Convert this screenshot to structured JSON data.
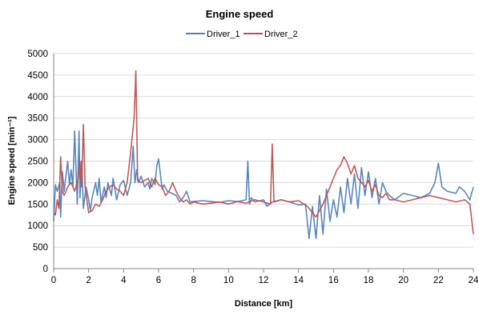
{
  "chart_data": {
    "type": "line",
    "title": "Engine speed",
    "xlabel": "Distance [km]",
    "ylabel": "Engine speed [min⁻¹]",
    "xlim": [
      0,
      24
    ],
    "ylim": [
      0,
      5000
    ],
    "x_ticks": [
      0,
      2,
      4,
      6,
      8,
      10,
      12,
      14,
      16,
      18,
      20,
      22,
      24
    ],
    "y_ticks": [
      0,
      500,
      1000,
      1500,
      2000,
      2500,
      3000,
      3500,
      4000,
      4500,
      5000
    ],
    "grid": true,
    "legend_position": "top",
    "series": [
      {
        "name": "Driver_1",
        "color": "#4F81BD",
        "x": [
          0,
          0.1,
          0.2,
          0.35,
          0.4,
          0.5,
          0.6,
          0.8,
          0.9,
          1.0,
          1.1,
          1.2,
          1.35,
          1.45,
          1.5,
          1.6,
          1.7,
          1.85,
          2.0,
          2.1,
          2.2,
          2.4,
          2.5,
          2.6,
          2.7,
          2.9,
          3.0,
          3.1,
          3.3,
          3.4,
          3.6,
          3.8,
          4.0,
          4.2,
          4.4,
          4.55,
          4.65,
          4.75,
          4.85,
          5.0,
          5.2,
          5.4,
          5.5,
          5.6,
          5.8,
          5.9,
          6.0,
          6.2,
          6.3,
          6.5,
          7.0,
          7.2,
          7.4,
          7.6,
          7.8,
          8.0,
          8.5,
          9.0,
          9.5,
          10.0,
          10.5,
          11.0,
          11.1,
          11.2,
          11.3,
          11.5,
          12.0,
          12.2,
          12.5,
          13.0,
          13.5,
          14.0,
          14.4,
          14.6,
          14.8,
          15.0,
          15.2,
          15.4,
          15.6,
          15.8,
          16.0,
          16.2,
          16.4,
          16.6,
          16.8,
          17.0,
          17.2,
          17.4,
          17.6,
          17.8,
          18.0,
          18.2,
          18.4,
          18.6,
          18.8,
          19.0,
          19.2,
          19.5,
          20.0,
          20.5,
          21.0,
          21.5,
          21.8,
          22.0,
          22.2,
          22.5,
          23.0,
          23.2,
          23.5,
          23.8,
          24.0
        ],
        "y": [
          1100,
          1950,
          1800,
          2000,
          1200,
          2250,
          1800,
          2500,
          1950,
          2300,
          1900,
          3200,
          1500,
          3200,
          1650,
          2500,
          1400,
          1900,
          1600,
          1350,
          1650,
          2000,
          1700,
          2100,
          1550,
          1900,
          1650,
          2000,
          1700,
          2100,
          1600,
          1950,
          2050,
          1700,
          2000,
          2850,
          2000,
          2300,
          2000,
          2150,
          1900,
          2000,
          1850,
          2100,
          1950,
          2400,
          2550,
          1850,
          1950,
          1800,
          1700,
          1550,
          1650,
          1800,
          1550,
          1560,
          1580,
          1560,
          1540,
          1580,
          1560,
          1600,
          2500,
          1500,
          1650,
          1550,
          1600,
          1450,
          1550,
          1600,
          1550,
          1480,
          1500,
          700,
          1450,
          700,
          1700,
          800,
          1850,
          1100,
          1600,
          1200,
          1900,
          1300,
          2100,
          1500,
          2200,
          1400,
          2350,
          1700,
          2250,
          1650,
          2100,
          1500,
          2000,
          1800,
          1700,
          1600,
          1750,
          1700,
          1650,
          1750,
          2000,
          2450,
          1900,
          1800,
          1750,
          1900,
          1800,
          1600,
          1900
        ]
      },
      {
        "name": "Driver_2",
        "color": "#C0504D",
        "x": [
          0,
          0.1,
          0.2,
          0.3,
          0.4,
          0.5,
          0.6,
          0.8,
          1.0,
          1.2,
          1.4,
          1.5,
          1.6,
          1.7,
          1.8,
          2.0,
          2.2,
          2.4,
          2.6,
          2.8,
          3.0,
          3.2,
          3.4,
          3.6,
          3.8,
          4.0,
          4.2,
          4.4,
          4.6,
          4.7,
          4.75,
          4.8,
          5.0,
          5.4,
          5.6,
          5.8,
          6.0,
          6.2,
          6.4,
          6.6,
          6.8,
          7.0,
          7.2,
          7.4,
          7.6,
          7.8,
          8.0,
          8.5,
          9.0,
          9.5,
          10.0,
          10.5,
          11.0,
          11.5,
          12.0,
          12.4,
          12.5,
          12.6,
          13.0,
          13.5,
          14.0,
          14.5,
          15.0,
          15.2,
          15.4,
          15.6,
          15.8,
          16.0,
          16.2,
          16.4,
          16.6,
          16.8,
          17.0,
          17.2,
          17.4,
          17.6,
          17.8,
          18.0,
          18.2,
          18.4,
          18.6,
          18.8,
          19.0,
          19.2,
          19.5,
          20.0,
          20.5,
          21.0,
          21.5,
          22.0,
          22.5,
          23.0,
          23.5,
          23.8,
          24.0
        ],
        "y": [
          1300,
          1250,
          1600,
          1400,
          2600,
          1800,
          1700,
          1900,
          2000,
          1800,
          2100,
          2500,
          1900,
          3350,
          1900,
          1300,
          1350,
          1500,
          1450,
          1600,
          1800,
          1900,
          1950,
          1850,
          1800,
          1700,
          2000,
          2700,
          3500,
          4600,
          3400,
          2050,
          2000,
          2100,
          1900,
          2100,
          1950,
          1900,
          1700,
          1800,
          2000,
          1800,
          1650,
          1550,
          1600,
          1500,
          1550,
          1500,
          1520,
          1550,
          1500,
          1560,
          1520,
          1600,
          1550,
          1500,
          2900,
          1550,
          1600,
          1550,
          1580,
          1450,
          1200,
          1350,
          1500,
          1700,
          1900,
          2100,
          2300,
          2400,
          2600,
          2450,
          2200,
          2400,
          2100,
          2000,
          1900,
          2050,
          1800,
          1950,
          1700,
          1650,
          1750,
          1600,
          1600,
          1550,
          1600,
          1650,
          1700,
          1650,
          1600,
          1550,
          1600,
          1500,
          800
        ]
      }
    ]
  }
}
